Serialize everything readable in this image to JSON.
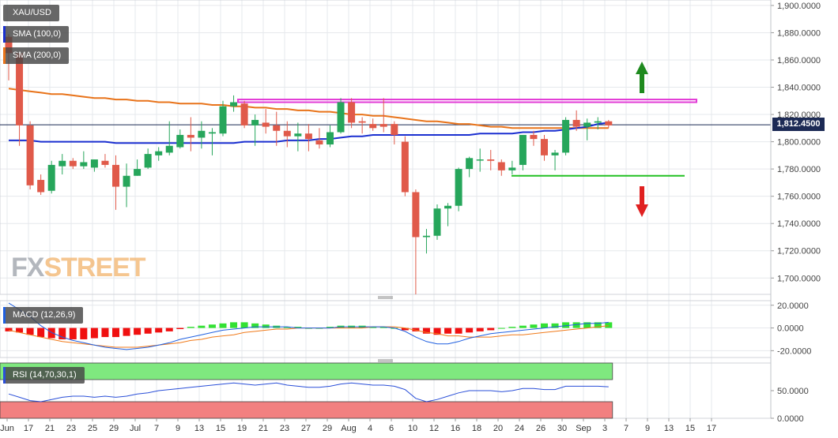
{
  "chart_data": [
    {
      "type": "candlestick",
      "title": "XAU/USD",
      "indicators": [
        {
          "name": "SMA (100,0)",
          "color": "#1a2fd0"
        },
        {
          "name": "SMA (200,0)",
          "color": "#e8731a"
        }
      ],
      "ylim": [
        1688,
        1904
      ],
      "y_ticks": [
        "1,900.0000",
        "1,880.0000",
        "1,860.0000",
        "1,840.0000",
        "1,820.0000",
        "1,800.0000",
        "1,780.0000",
        "1,760.0000",
        "1,740.0000",
        "1,720.0000",
        "1,700.0000"
      ],
      "current_price": "1,812.4500",
      "x_ticks": [
        "Jun",
        "17",
        "21",
        "23",
        "25",
        "29",
        "Jul",
        "7",
        "9",
        "13",
        "15",
        "19",
        "21",
        "23",
        "27",
        "29",
        "Aug",
        "4",
        "6",
        "10",
        "12",
        "16",
        "18",
        "20",
        "24",
        "26",
        "30",
        "Sep",
        "3",
        "7",
        "9",
        "13",
        "15",
        "17"
      ],
      "bullish_color": "#26a65b",
      "bearish_color": "#e05a4a",
      "candles": [
        {
          "o": 1877,
          "h": 1879,
          "l": 1845,
          "c": 1865
        },
        {
          "o": 1865,
          "h": 1866,
          "l": 1797,
          "c": 1812
        },
        {
          "o": 1812,
          "h": 1815,
          "l": 1765,
          "c": 1768
        },
        {
          "o": 1772,
          "h": 1776,
          "l": 1761,
          "c": 1763
        },
        {
          "o": 1764,
          "h": 1786,
          "l": 1762,
          "c": 1783
        },
        {
          "o": 1782,
          "h": 1791,
          "l": 1776,
          "c": 1786
        },
        {
          "o": 1786,
          "h": 1788,
          "l": 1780,
          "c": 1782
        },
        {
          "o": 1782,
          "h": 1793,
          "l": 1780,
          "c": 1785
        },
        {
          "o": 1781,
          "h": 1787,
          "l": 1778,
          "c": 1787
        },
        {
          "o": 1786,
          "h": 1791,
          "l": 1781,
          "c": 1783
        },
        {
          "o": 1783,
          "h": 1790,
          "l": 1750,
          "c": 1767
        },
        {
          "o": 1767,
          "h": 1784,
          "l": 1752,
          "c": 1775
        },
        {
          "o": 1775,
          "h": 1787,
          "l": 1775,
          "c": 1780
        },
        {
          "o": 1781,
          "h": 1795,
          "l": 1780,
          "c": 1791
        },
        {
          "o": 1790,
          "h": 1796,
          "l": 1786,
          "c": 1793
        },
        {
          "o": 1792,
          "h": 1815,
          "l": 1790,
          "c": 1797
        },
        {
          "o": 1796,
          "h": 1809,
          "l": 1795,
          "c": 1805
        },
        {
          "o": 1805,
          "h": 1818,
          "l": 1793,
          "c": 1803
        },
        {
          "o": 1803,
          "h": 1815,
          "l": 1795,
          "c": 1808
        },
        {
          "o": 1806,
          "h": 1810,
          "l": 1790,
          "c": 1807
        },
        {
          "o": 1806,
          "h": 1830,
          "l": 1804,
          "c": 1826
        },
        {
          "o": 1826,
          "h": 1834,
          "l": 1822,
          "c": 1829
        },
        {
          "o": 1828,
          "h": 1830,
          "l": 1810,
          "c": 1812
        },
        {
          "o": 1812,
          "h": 1820,
          "l": 1797,
          "c": 1816
        },
        {
          "o": 1814,
          "h": 1824,
          "l": 1806,
          "c": 1811
        },
        {
          "o": 1812,
          "h": 1822,
          "l": 1797,
          "c": 1808
        },
        {
          "o": 1808,
          "h": 1815,
          "l": 1796,
          "c": 1804
        },
        {
          "o": 1804,
          "h": 1814,
          "l": 1793,
          "c": 1806
        },
        {
          "o": 1806,
          "h": 1813,
          "l": 1793,
          "c": 1802
        },
        {
          "o": 1801,
          "h": 1810,
          "l": 1795,
          "c": 1798
        },
        {
          "o": 1798,
          "h": 1812,
          "l": 1796,
          "c": 1807
        },
        {
          "o": 1807,
          "h": 1832,
          "l": 1806,
          "c": 1829
        },
        {
          "o": 1829,
          "h": 1832,
          "l": 1810,
          "c": 1814
        },
        {
          "o": 1815,
          "h": 1818,
          "l": 1806,
          "c": 1814
        },
        {
          "o": 1813,
          "h": 1817,
          "l": 1808,
          "c": 1810
        },
        {
          "o": 1813,
          "h": 1832,
          "l": 1807,
          "c": 1811
        },
        {
          "o": 1813,
          "h": 1815,
          "l": 1798,
          "c": 1805
        },
        {
          "o": 1800,
          "h": 1804,
          "l": 1760,
          "c": 1763
        },
        {
          "o": 1763,
          "h": 1765,
          "l": 1688,
          "c": 1730
        },
        {
          "o": 1730,
          "h": 1736,
          "l": 1718,
          "c": 1731
        },
        {
          "o": 1731,
          "h": 1754,
          "l": 1728,
          "c": 1751
        },
        {
          "o": 1751,
          "h": 1755,
          "l": 1738,
          "c": 1753
        },
        {
          "o": 1753,
          "h": 1781,
          "l": 1749,
          "c": 1780
        },
        {
          "o": 1780,
          "h": 1789,
          "l": 1774,
          "c": 1788
        },
        {
          "o": 1787,
          "h": 1795,
          "l": 1778,
          "c": 1787
        },
        {
          "o": 1787,
          "h": 1794,
          "l": 1779,
          "c": 1786
        },
        {
          "o": 1785,
          "h": 1787,
          "l": 1775,
          "c": 1779
        },
        {
          "o": 1779,
          "h": 1786,
          "l": 1776,
          "c": 1781
        },
        {
          "o": 1783,
          "h": 1805,
          "l": 1779,
          "c": 1805
        },
        {
          "o": 1805,
          "h": 1808,
          "l": 1797,
          "c": 1802
        },
        {
          "o": 1802,
          "h": 1805,
          "l": 1786,
          "c": 1790
        },
        {
          "o": 1790,
          "h": 1794,
          "l": 1779,
          "c": 1792
        },
        {
          "o": 1792,
          "h": 1818,
          "l": 1790,
          "c": 1816
        },
        {
          "o": 1816,
          "h": 1823,
          "l": 1808,
          "c": 1811
        },
        {
          "o": 1811,
          "h": 1817,
          "l": 1801,
          "c": 1814
        },
        {
          "o": 1814,
          "h": 1818,
          "l": 1809,
          "c": 1815
        },
        {
          "o": 1815,
          "h": 1816,
          "l": 1810,
          "c": 1812
        }
      ],
      "sma100": [
        1801,
        1801,
        1801,
        1800,
        1800,
        1800,
        1800,
        1800,
        1800,
        1800,
        1799,
        1799,
        1799,
        1799,
        1799,
        1799,
        1799,
        1799,
        1799,
        1799,
        1799,
        1799,
        1800,
        1800,
        1800,
        1800,
        1801,
        1801,
        1801,
        1802,
        1802,
        1803,
        1804,
        1804,
        1805,
        1805,
        1805,
        1805,
        1805,
        1805,
        1805,
        1805,
        1805,
        1805,
        1806,
        1806,
        1806,
        1806,
        1807,
        1807,
        1808,
        1808,
        1809,
        1810,
        1811,
        1813,
        1814
      ],
      "sma200": [
        1839,
        1838,
        1837,
        1836,
        1835,
        1835,
        1834,
        1833,
        1832,
        1832,
        1831,
        1831,
        1830,
        1830,
        1829,
        1829,
        1828,
        1828,
        1828,
        1827,
        1827,
        1826,
        1826,
        1825,
        1825,
        1824,
        1824,
        1823,
        1823,
        1822,
        1822,
        1821,
        1820,
        1820,
        1819,
        1819,
        1818,
        1817,
        1816,
        1815,
        1815,
        1814,
        1813,
        1813,
        1812,
        1811,
        1811,
        1810,
        1810,
        1810,
        1810,
        1810,
        1810,
        1810,
        1810,
        1810,
        1810
      ],
      "resistance_zone": {
        "from": 1829,
        "to": 1831
      },
      "support_level": 1775,
      "arrows": {
        "up_color": "#1e8a1e",
        "down_color": "#e02020"
      }
    },
    {
      "type": "bar",
      "title": "MACD (12,26,9)",
      "y_ticks": [
        "20.0000",
        "0.0000",
        "-20.0000"
      ],
      "ylim": [
        -26,
        24
      ],
      "histogram": [
        -3,
        -4,
        -6,
        -8,
        -9,
        -10,
        -10,
        -10,
        -9,
        -8,
        -8,
        -7,
        -6,
        -5,
        -4,
        -3,
        -1,
        1,
        2,
        3,
        4,
        5,
        5,
        4,
        3,
        2,
        1,
        1,
        0,
        0,
        1,
        2,
        2,
        2,
        1,
        1,
        0,
        -2,
        -3,
        -5,
        -6,
        -5,
        -5,
        -4,
        -3,
        -2,
        0,
        1,
        2,
        3,
        4,
        4,
        5,
        5,
        5,
        5,
        5
      ],
      "macd": [
        22,
        16,
        10,
        2,
        -4,
        -8,
        -11,
        -13,
        -15,
        -17,
        -18,
        -19,
        -18,
        -17,
        -15,
        -13,
        -10,
        -8,
        -6,
        -4,
        -2,
        -1,
        0,
        1,
        1,
        1,
        1,
        0,
        0,
        0,
        0,
        1,
        1,
        1,
        1,
        1,
        0,
        -3,
        -8,
        -12,
        -14,
        -14,
        -12,
        -9,
        -7,
        -5,
        -4,
        -3,
        -2,
        -1,
        0,
        1,
        2,
        3,
        4,
        4,
        5
      ],
      "signal": [
        -2,
        -4,
        -6,
        -8,
        -10,
        -12,
        -13,
        -14,
        -15,
        -16,
        -17,
        -17,
        -17,
        -16,
        -15,
        -14,
        -13,
        -11,
        -10,
        -8,
        -7,
        -6,
        -4,
        -3,
        -2,
        -1,
        -1,
        0,
        0,
        0,
        0,
        0,
        0,
        0,
        1,
        1,
        1,
        0,
        -2,
        -4,
        -5,
        -7,
        -7,
        -8,
        -8,
        -8,
        -7,
        -6,
        -6,
        -5,
        -4,
        -3,
        -2,
        -1,
        0,
        1,
        2
      ],
      "macd_color": "#1f5fe0",
      "signal_color": "#f07a1a",
      "positive_color": "#33e133",
      "negative_color": "#f01010"
    },
    {
      "type": "line",
      "title": "RSI (14,70,30,1)",
      "y_ticks": [
        "50.0000",
        "0.0000"
      ],
      "ylim": [
        0,
        100
      ],
      "overbought": 70,
      "oversold": 30,
      "values": [
        44,
        38,
        32,
        30,
        34,
        38,
        40,
        40,
        38,
        40,
        38,
        40,
        44,
        46,
        50,
        52,
        54,
        56,
        58,
        60,
        62,
        64,
        62,
        60,
        62,
        64,
        60,
        58,
        56,
        56,
        58,
        62,
        64,
        62,
        60,
        60,
        58,
        52,
        36,
        30,
        34,
        40,
        46,
        50,
        50,
        50,
        48,
        50,
        54,
        54,
        52,
        52,
        58,
        58,
        58,
        58,
        57
      ],
      "line_color": "#2a4fd8",
      "overbought_fill": "#7fe87f",
      "oversold_fill": "#f28080"
    }
  ]
}
